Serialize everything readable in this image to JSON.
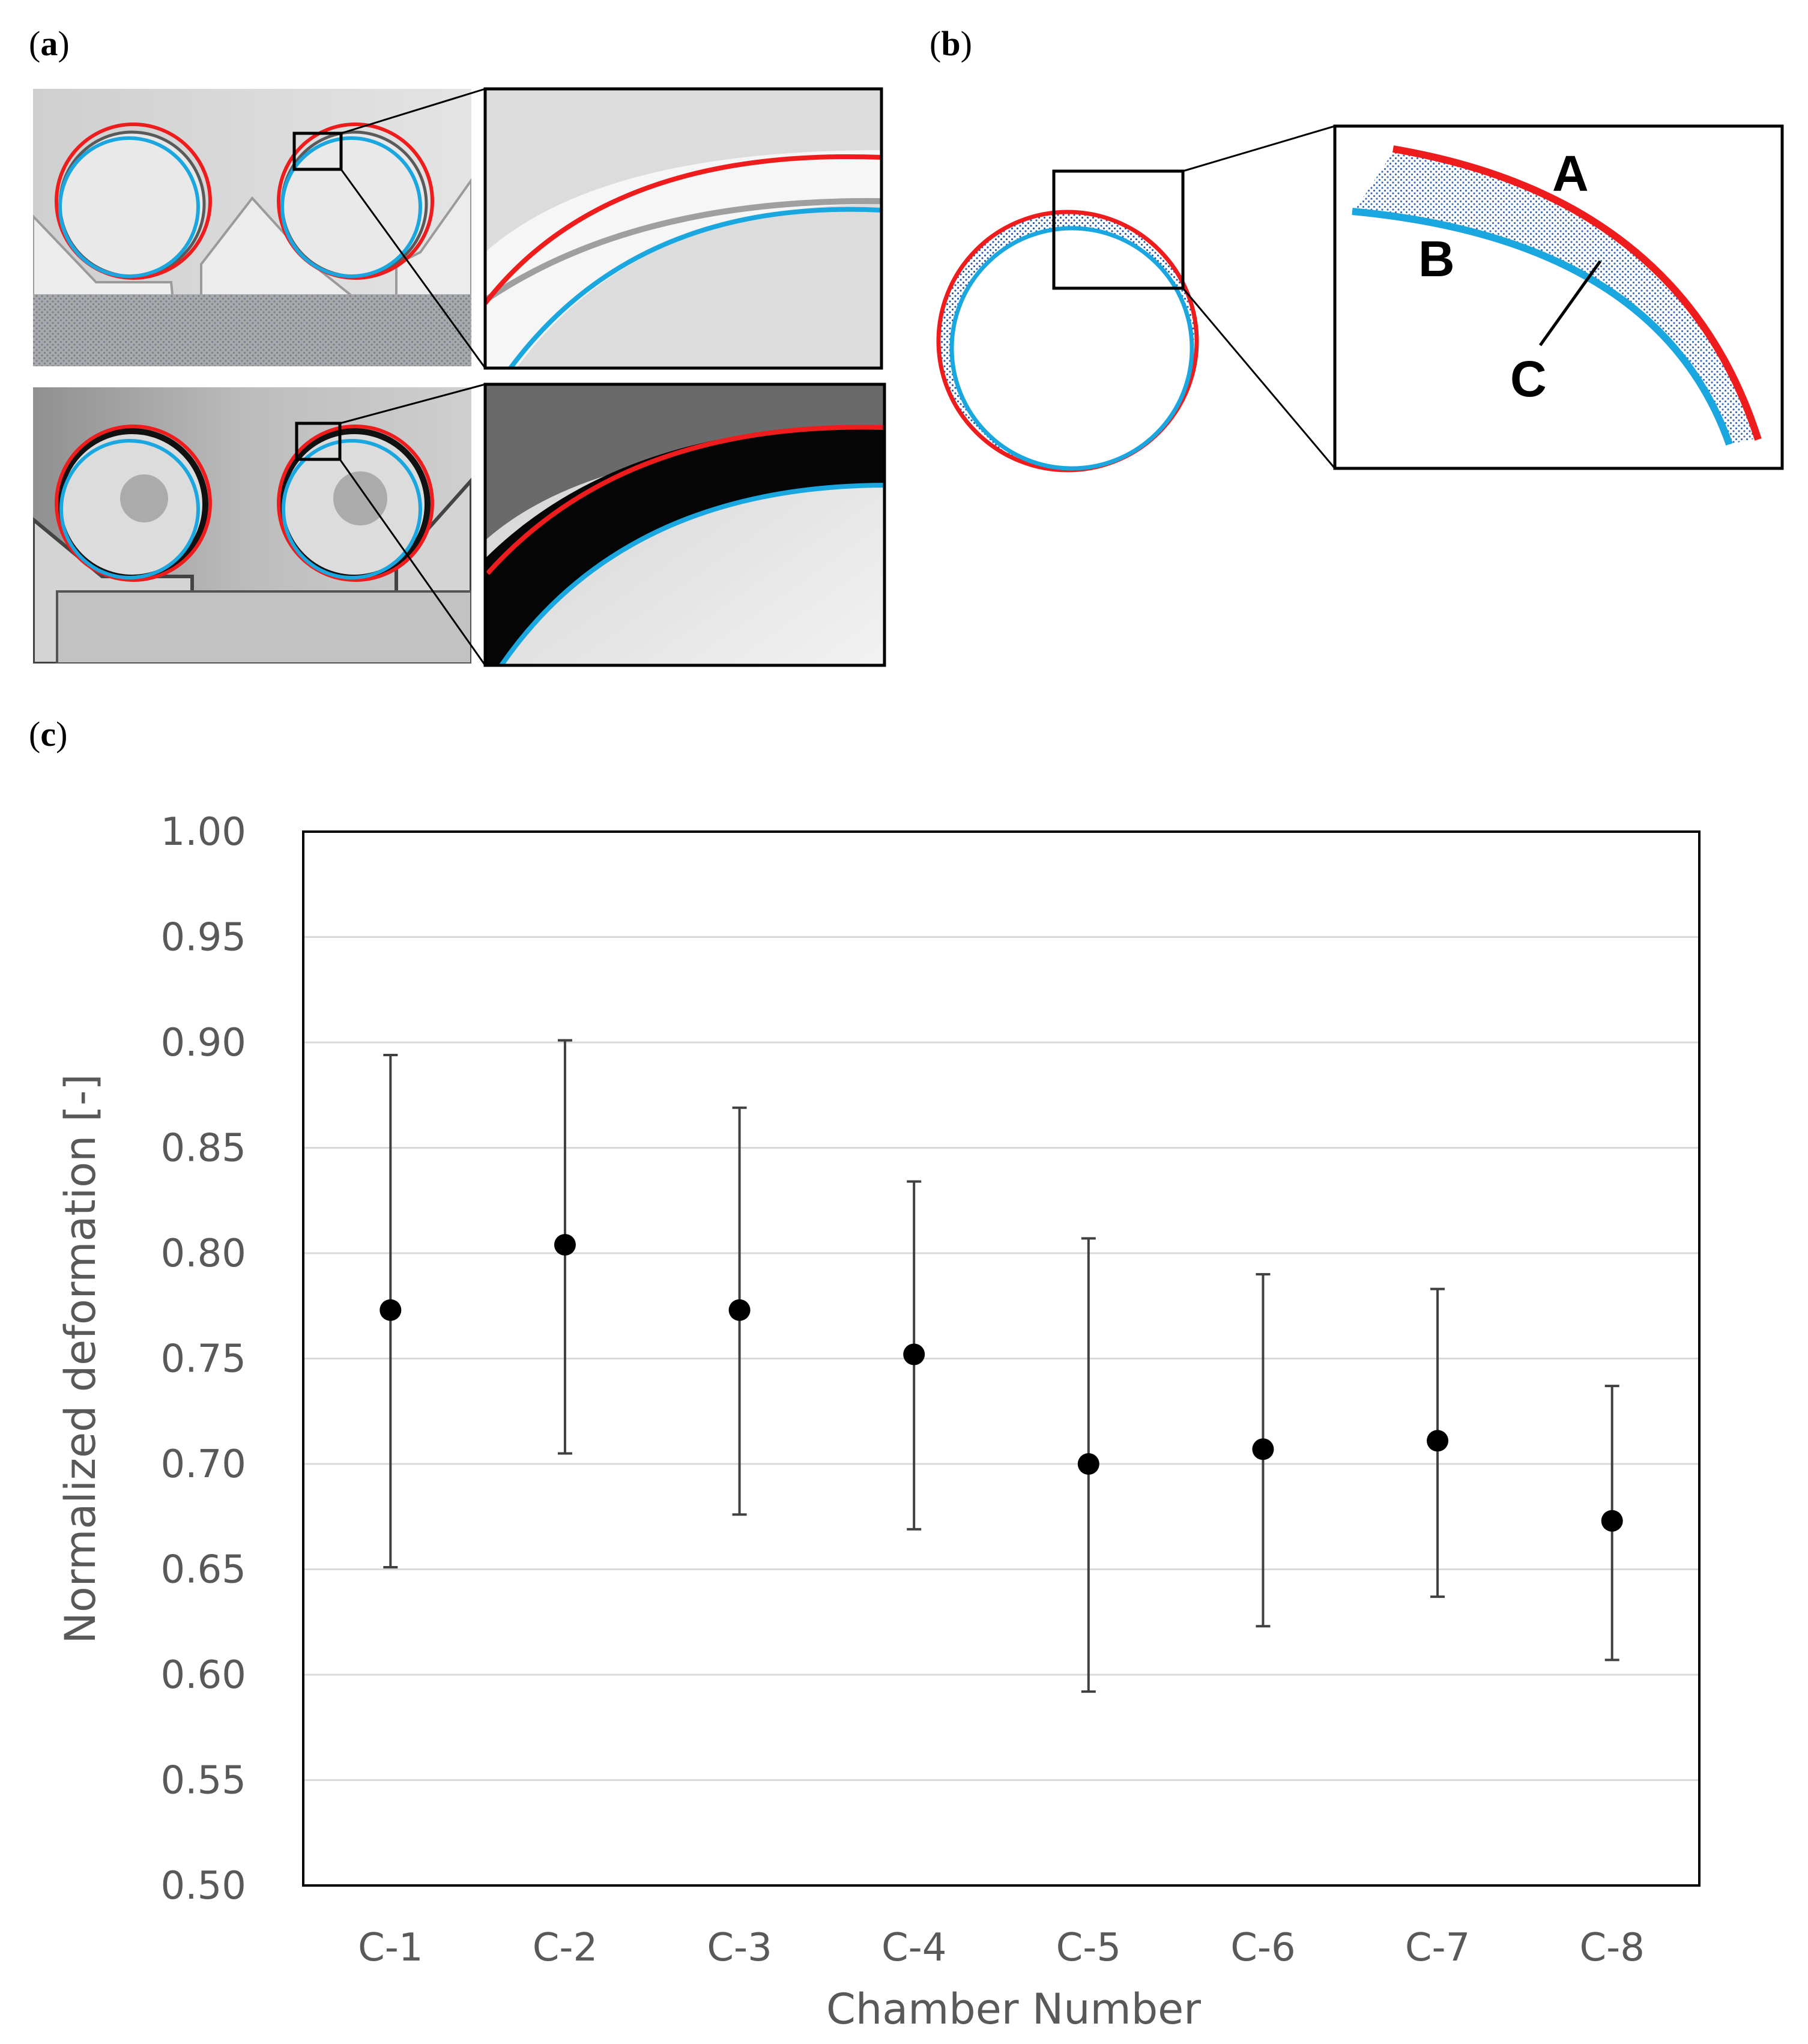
{
  "panels": {
    "a": {
      "label_open": "(",
      "letter": "a",
      "label_close": ")"
    },
    "b": {
      "label_open": "(",
      "letter": "b",
      "label_close": ")",
      "annotations": [
        "A",
        "B",
        "C"
      ]
    },
    "c": {
      "label_open": "(",
      "letter": "c",
      "label_close": ")"
    }
  },
  "colors": {
    "outer_contour": "#ee1c1c",
    "inner_contour": "#1aa7e0",
    "marker": "#000000",
    "error_bar": "#404040",
    "grid": "#d9d9d9",
    "text": "#595959"
  },
  "chart_data": {
    "type": "scatter",
    "title": "",
    "xlabel": "Chamber Number",
    "ylabel": "Normalized deformation [-]",
    "categories": [
      "C-1",
      "C-2",
      "C-3",
      "C-4",
      "C-5",
      "C-6",
      "C-7",
      "C-8"
    ],
    "series": [
      {
        "values": [
          0.773,
          0.804,
          0.773,
          0.752,
          0.7,
          0.707,
          0.711,
          0.673
        ],
        "error_low": [
          0.651,
          0.705,
          0.676,
          0.669,
          0.592,
          0.623,
          0.637,
          0.607
        ],
        "error_high": [
          0.894,
          0.901,
          0.869,
          0.834,
          0.807,
          0.79,
          0.783,
          0.737
        ]
      }
    ],
    "ylim": [
      0.5,
      1.0
    ],
    "yticks": [
      "0.50",
      "0.55",
      "0.60",
      "0.65",
      "0.70",
      "0.75",
      "0.80",
      "0.85",
      "0.90",
      "0.95",
      "1.00"
    ],
    "grid": true,
    "legend": "none"
  }
}
